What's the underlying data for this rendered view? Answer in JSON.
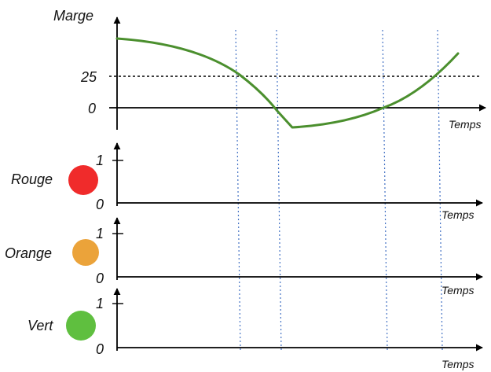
{
  "top_panel": {
    "y_label": "Marge",
    "x_label": "Temps",
    "tick_25": "25",
    "tick_0": "0"
  },
  "panels": [
    {
      "key": "rouge",
      "label": "Rouge",
      "color": "#f02b2b",
      "tick_1": "1",
      "tick_0": "0",
      "x_label": "Temps"
    },
    {
      "key": "orange",
      "label": "Orange",
      "color": "#eba33a",
      "tick_1": "1",
      "tick_0": "0",
      "x_label": "Temps"
    },
    {
      "key": "vert",
      "label": "Vert",
      "color": "#5fbf3f",
      "tick_1": "1",
      "tick_0": "0",
      "x_label": "Temps"
    }
  ],
  "colors": {
    "curve": "#4b8f2e",
    "axes": "#000000",
    "threshold_line": "#000000",
    "guide_lines": "#4472c4"
  }
}
